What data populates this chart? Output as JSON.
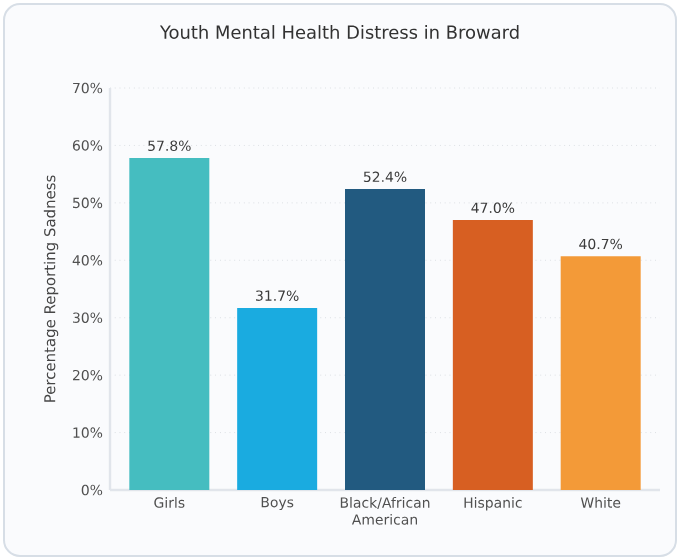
{
  "chart_data": {
    "type": "bar",
    "title": "Youth Mental Health Distress in Broward",
    "ylabel": "Percentage Reporting Sadness",
    "categories": [
      "Girls",
      "Boys",
      "Black/African American",
      "Hispanic",
      "White"
    ],
    "values": [
      57.8,
      31.7,
      52.4,
      47.0,
      40.7
    ],
    "value_labels": [
      "57.8%",
      "31.7%",
      "52.4%",
      "47.0%",
      "40.7%"
    ],
    "colors": [
      "#45bdc0",
      "#1aabe0",
      "#225a80",
      "#d75f22",
      "#f39a38"
    ],
    "ylim": [
      0,
      70
    ],
    "yticks": [
      {
        "value": 0,
        "label": "0%"
      },
      {
        "value": 10,
        "label": "10%"
      },
      {
        "value": 20,
        "label": "20%"
      },
      {
        "value": 30,
        "label": "30%"
      },
      {
        "value": 40,
        "label": "40%"
      },
      {
        "value": 50,
        "label": "50%"
      },
      {
        "value": 60,
        "label": "60%"
      },
      {
        "value": 70,
        "label": "70%"
      }
    ],
    "grid": "y"
  }
}
